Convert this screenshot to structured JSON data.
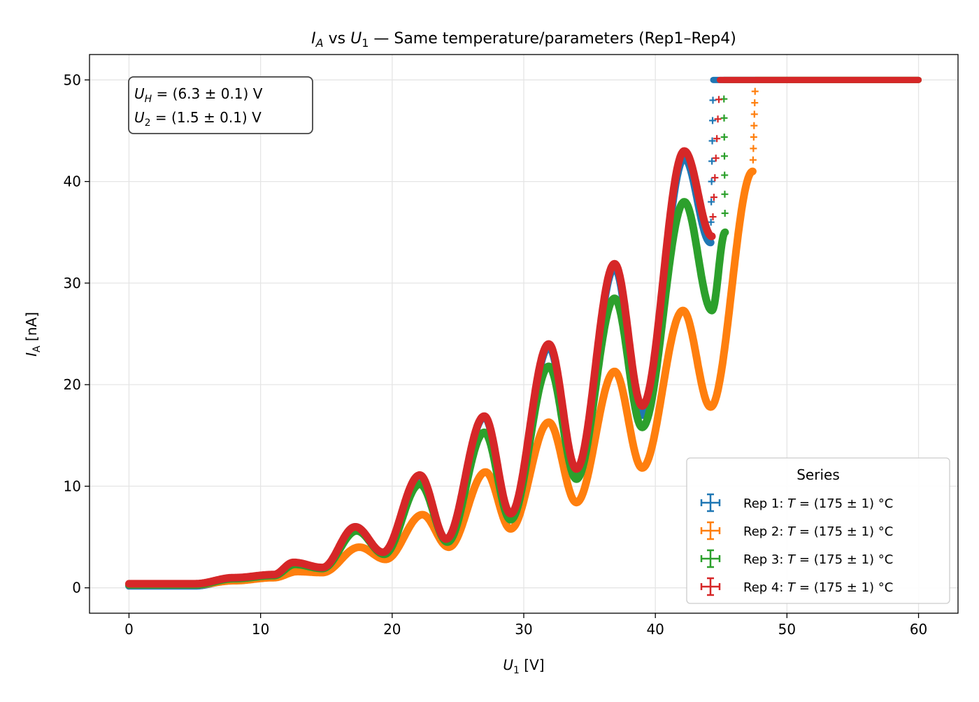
{
  "chart_data": {
    "type": "scatter",
    "title": "I_A vs U_1 — Same temperature/parameters (Rep1–Rep4)",
    "title_parts": {
      "i": "I",
      "isub": "A",
      "vs": " vs ",
      "u": "U",
      "usub": "1",
      "rest": " — Same temperature/parameters (Rep1–Rep4)"
    },
    "xlabel": "U_1 [V]",
    "xlabel_parts": {
      "sym": "U",
      "sub": "1",
      "unit": " [V]"
    },
    "ylabel": "I_A [nA]",
    "ylabel_parts": {
      "sym": "I",
      "sub": "A",
      "unit": " [nA]"
    },
    "xlim": [
      -3,
      63
    ],
    "ylim": [
      -2.5,
      52.5
    ],
    "xticks": [
      0,
      10,
      20,
      30,
      40,
      50,
      60
    ],
    "yticks": [
      0,
      10,
      20,
      30,
      40,
      50
    ],
    "grid": true,
    "saturation_value": 50,
    "x_range": [
      0,
      60
    ],
    "annotation": {
      "lines": [
        {
          "sym": "U",
          "sub": "H",
          "text": " = (6.3 ± 0.1) V"
        },
        {
          "sym": "U",
          "sub": "2",
          "text": " = (1.5 ± 0.1) V"
        }
      ],
      "position": "top-left"
    },
    "legend": {
      "title": "Series",
      "position": "bottom-right"
    },
    "series": [
      {
        "name": "Rep 1: T = (175 ± 1) °C",
        "label_parts": {
          "pre": "Rep 1: ",
          "sym": "T",
          "post": " = (175 ± 1) °C"
        },
        "color": "#1f77b4",
        "saturation_x": 44.4,
        "points": [
          [
            0,
            0.2
          ],
          [
            5,
            0.2
          ],
          [
            8,
            0.8
          ],
          [
            11,
            1.2
          ],
          [
            12.4,
            2.4
          ],
          [
            14.7,
            1.8
          ],
          [
            17.2,
            6.0
          ],
          [
            19.3,
            3.4
          ],
          [
            22.1,
            11.0
          ],
          [
            24.1,
            4.8
          ],
          [
            27.0,
            16.8
          ],
          [
            29.0,
            7.2
          ],
          [
            31.9,
            23.7
          ],
          [
            34.0,
            11.6
          ],
          [
            36.9,
            31.5
          ],
          [
            39.0,
            17.0
          ],
          [
            42.2,
            42.3
          ],
          [
            44.2,
            34.0
          ]
        ]
      },
      {
        "name": "Rep 2: T = (175 ± 1) °C",
        "label_parts": {
          "pre": "Rep 2: ",
          "sym": "T",
          "post": " = (175 ± 1) °C"
        },
        "color": "#ff7f0e",
        "saturation_x": 47.6,
        "points": [
          [
            0,
            0.3
          ],
          [
            5,
            0.3
          ],
          [
            8,
            0.7
          ],
          [
            11,
            1.0
          ],
          [
            12.8,
            1.6
          ],
          [
            14.7,
            1.5
          ],
          [
            17.5,
            4.0
          ],
          [
            19.5,
            2.8
          ],
          [
            22.3,
            7.2
          ],
          [
            24.3,
            4.0
          ],
          [
            27.1,
            11.4
          ],
          [
            29.0,
            5.8
          ],
          [
            31.9,
            16.3
          ],
          [
            34.0,
            8.4
          ],
          [
            36.9,
            21.3
          ],
          [
            39.0,
            11.8
          ],
          [
            42.1,
            27.3
          ],
          [
            44.2,
            17.8
          ],
          [
            47.4,
            41.0
          ]
        ]
      },
      {
        "name": "Rep 3: T = (175 ± 1) °C",
        "label_parts": {
          "pre": "Rep 3: ",
          "sym": "T",
          "post": " = (175 ± 1) °C"
        },
        "color": "#2ca02c",
        "saturation_x": 45.2,
        "points": [
          [
            0,
            0.3
          ],
          [
            5,
            0.3
          ],
          [
            8,
            0.9
          ],
          [
            11,
            1.2
          ],
          [
            12.6,
            2.3
          ],
          [
            14.7,
            1.9
          ],
          [
            17.3,
            5.6
          ],
          [
            19.4,
            3.3
          ],
          [
            22.1,
            10.2
          ],
          [
            24.2,
            4.5
          ],
          [
            27.0,
            15.3
          ],
          [
            29.0,
            6.7
          ],
          [
            31.9,
            21.8
          ],
          [
            34.0,
            10.7
          ],
          [
            36.9,
            28.5
          ],
          [
            39.0,
            15.8
          ],
          [
            42.2,
            38.0
          ],
          [
            44.3,
            27.3
          ],
          [
            45.3,
            35.0
          ]
        ]
      },
      {
        "name": "Rep 4: T = (175 ± 1) °C",
        "label_parts": {
          "pre": "Rep 4: ",
          "sym": "T",
          "post": " = (175 ± 1) °C"
        },
        "color": "#d62728",
        "saturation_x": 44.9,
        "points": [
          [
            0,
            0.4
          ],
          [
            5,
            0.4
          ],
          [
            8,
            1.0
          ],
          [
            11,
            1.3
          ],
          [
            12.5,
            2.5
          ],
          [
            14.7,
            2.0
          ],
          [
            17.2,
            6.0
          ],
          [
            19.3,
            3.5
          ],
          [
            22.1,
            11.1
          ],
          [
            24.1,
            4.8
          ],
          [
            27.0,
            16.9
          ],
          [
            29.0,
            7.3
          ],
          [
            31.9,
            24.0
          ],
          [
            34.0,
            11.7
          ],
          [
            36.9,
            31.9
          ],
          [
            39.0,
            17.9
          ],
          [
            42.2,
            43.0
          ],
          [
            44.3,
            34.6
          ]
        ]
      }
    ]
  }
}
